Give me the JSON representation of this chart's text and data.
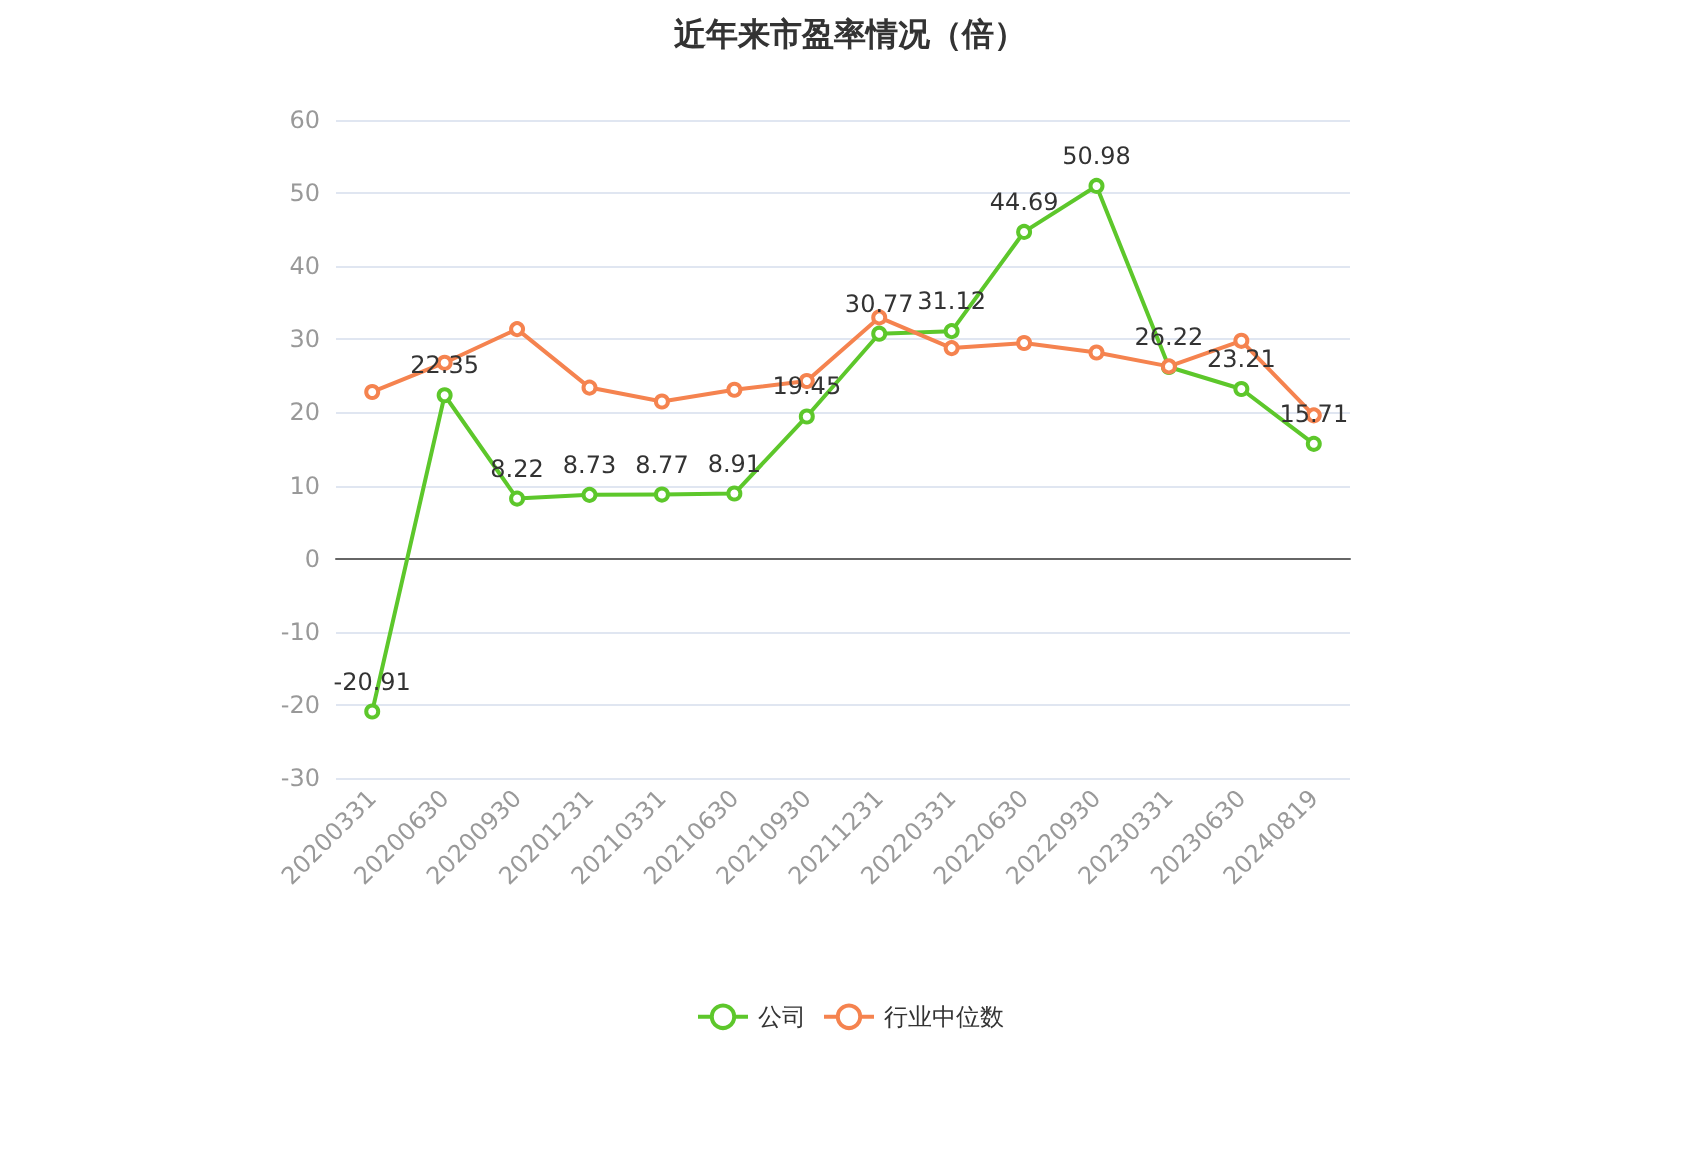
{
  "chart_data": {
    "type": "line",
    "title": "近年来市盈率情况（倍）",
    "categories": [
      "20200331",
      "20200630",
      "20200930",
      "20201231",
      "20210331",
      "20210630",
      "20210930",
      "20211231",
      "20220331",
      "20220630",
      "20220930",
      "20230331",
      "20230630",
      "20240819"
    ],
    "series": [
      {
        "name": "公司",
        "color": "#5dc72b",
        "values": [
          -20.91,
          22.35,
          8.22,
          8.73,
          8.77,
          8.91,
          19.45,
          30.77,
          31.12,
          44.69,
          50.98,
          26.22,
          23.21,
          15.71
        ],
        "data_labels": true
      },
      {
        "name": "行业中位数",
        "color": "#f5834f",
        "values": [
          22.8,
          26.8,
          31.4,
          23.4,
          21.5,
          23.1,
          24.3,
          33.0,
          28.8,
          29.5,
          28.2,
          26.3,
          29.8,
          19.6
        ]
      }
    ],
    "ylim": [
      -30,
      60
    ],
    "yticks": [
      -30,
      -20,
      -10,
      0,
      10,
      20,
      30,
      40,
      50,
      60
    ],
    "grid": "y",
    "legend": "bottom",
    "marker": "circle",
    "line_style": "solid"
  }
}
